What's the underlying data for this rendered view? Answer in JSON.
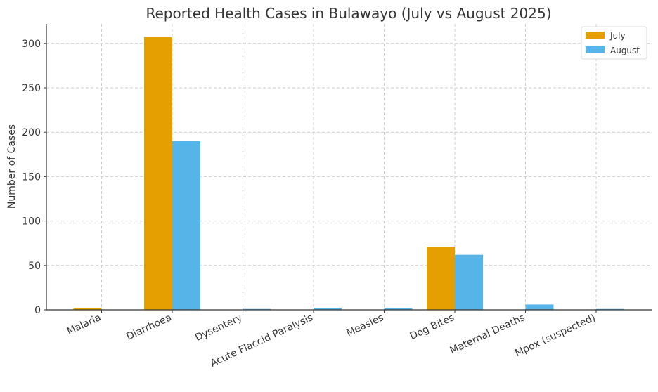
{
  "chart_data": {
    "type": "bar",
    "title": "Reported Health Cases in Bulawayo (July vs August 2025)",
    "xlabel": "",
    "ylabel": "Number of Cases",
    "categories": [
      "Malaria",
      "Diarrhoea",
      "Dysentery",
      "Acute Flaccid Paralysis",
      "Measles",
      "Dog Bites",
      "Maternal Deaths",
      "Mpox (suspected)"
    ],
    "series": [
      {
        "name": "July",
        "values": [
          2,
          307,
          0,
          0,
          0,
          71,
          0,
          0
        ],
        "color": "#E69F00"
      },
      {
        "name": "August",
        "values": [
          0,
          190,
          1,
          2,
          2,
          62,
          6,
          1
        ],
        "color": "#56B4E9"
      }
    ],
    "ylim": [
      0,
      322
    ],
    "yticks": [
      "0",
      "50",
      "100",
      "150",
      "200",
      "250",
      "300"
    ],
    "grid": true,
    "legend_position": "top-right"
  }
}
